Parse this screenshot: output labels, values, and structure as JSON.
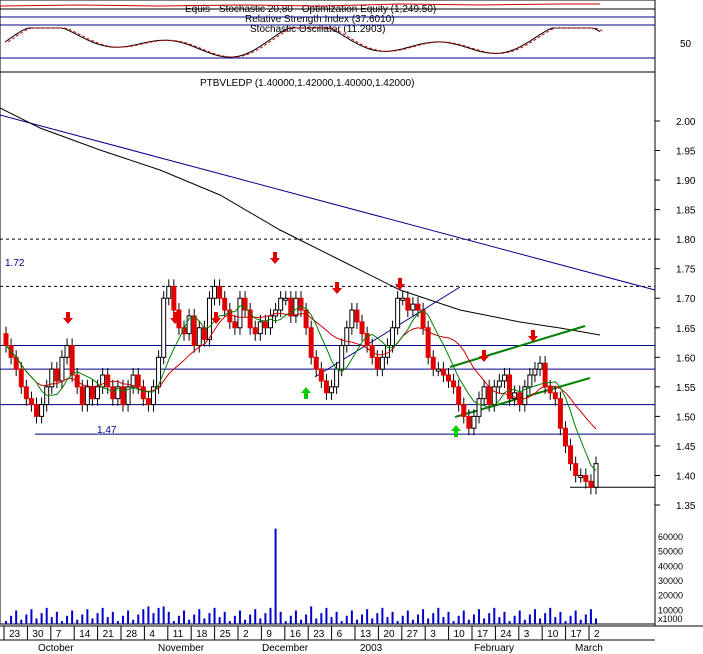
{
  "legends": {
    "equity": "Equis - Stochastic 20,80 - Optimization Equity (1,249.50)",
    "rsi": "Relative Strength Index (37.6010)",
    "stoch": "Stochastic Oscillator (11.2903)",
    "price": "PTBVLEDP (1.40000,1.42000,1.40000,1.42000)"
  },
  "indicator_panel": {
    "tick_label": "50"
  },
  "price_panel": {
    "y_ticks": [
      "2.00",
      "1.95",
      "1.90",
      "1.85",
      "1.80",
      "1.75",
      "1.70",
      "1.65",
      "1.60",
      "1.55",
      "1.50",
      "1.45",
      "1.40",
      "1.35"
    ],
    "annotations": {
      "resistance_label": "1.72",
      "support_label": "1,47"
    }
  },
  "volume_panel": {
    "y_ticks": [
      "60000",
      "50000",
      "40000",
      "30000",
      "20000",
      "10000"
    ],
    "multiplier": "x1000"
  },
  "x_axis": {
    "day_ticks": [
      "23",
      "30",
      "7",
      "14",
      "21",
      "28",
      "4",
      "11",
      "18",
      "25",
      "2",
      "9",
      "16",
      "23",
      "6",
      "13",
      "20",
      "27",
      "3",
      "10",
      "17",
      "24",
      "3",
      "10",
      "17",
      "2"
    ],
    "months": [
      "October",
      "November",
      "December",
      "2003",
      "February",
      "March"
    ]
  },
  "colors": {
    "up_candle": "#ffffff",
    "down_candle": "#e00000",
    "ma_red": "#cc0000",
    "ma_green": "#008000",
    "trend_blue": "#00008b",
    "channel_green": "#008000",
    "volume": "#0000cc"
  },
  "chart_data": {
    "type": "candlestick",
    "title": "PTBVLEDP",
    "price_ylim": [
      1.33,
      2.05
    ],
    "ohlc_close": [
      1.62,
      1.6,
      1.58,
      1.55,
      1.53,
      1.52,
      1.5,
      1.52,
      1.55,
      1.58,
      1.56,
      1.6,
      1.62,
      1.57,
      1.55,
      1.52,
      1.55,
      1.53,
      1.55,
      1.57,
      1.55,
      1.53,
      1.55,
      1.52,
      1.55,
      1.57,
      1.55,
      1.53,
      1.52,
      1.55,
      1.6,
      1.7,
      1.72,
      1.68,
      1.65,
      1.64,
      1.67,
      1.62,
      1.65,
      1.63,
      1.7,
      1.72,
      1.7,
      1.68,
      1.66,
      1.65,
      1.7,
      1.68,
      1.65,
      1.64,
      1.66,
      1.65,
      1.67,
      1.68,
      1.7,
      1.7,
      1.67,
      1.7,
      1.68,
      1.65,
      1.6,
      1.58,
      1.56,
      1.54,
      1.55,
      1.58,
      1.62,
      1.65,
      1.68,
      1.66,
      1.64,
      1.62,
      1.6,
      1.58,
      1.6,
      1.62,
      1.65,
      1.7,
      1.7,
      1.68,
      1.69,
      1.68,
      1.65,
      1.6,
      1.58,
      1.58,
      1.57,
      1.56,
      1.55,
      1.52,
      1.5,
      1.48,
      1.5,
      1.53,
      1.55,
      1.52,
      1.55,
      1.56,
      1.57,
      1.53,
      1.54,
      1.52,
      1.55,
      1.57,
      1.58,
      1.59,
      1.55,
      1.54,
      1.53,
      1.48,
      1.45,
      1.42,
      1.4,
      1.4,
      1.39,
      1.38,
      1.42
    ],
    "horizontal_lines": [
      1.72,
      1.8,
      1.62,
      1.58,
      1.52,
      1.47,
      1.38
    ],
    "volume_peak": 65000,
    "series": [
      {
        "name": "Relative Strength Index"
      },
      {
        "name": "Stochastic Oscillator"
      }
    ]
  }
}
